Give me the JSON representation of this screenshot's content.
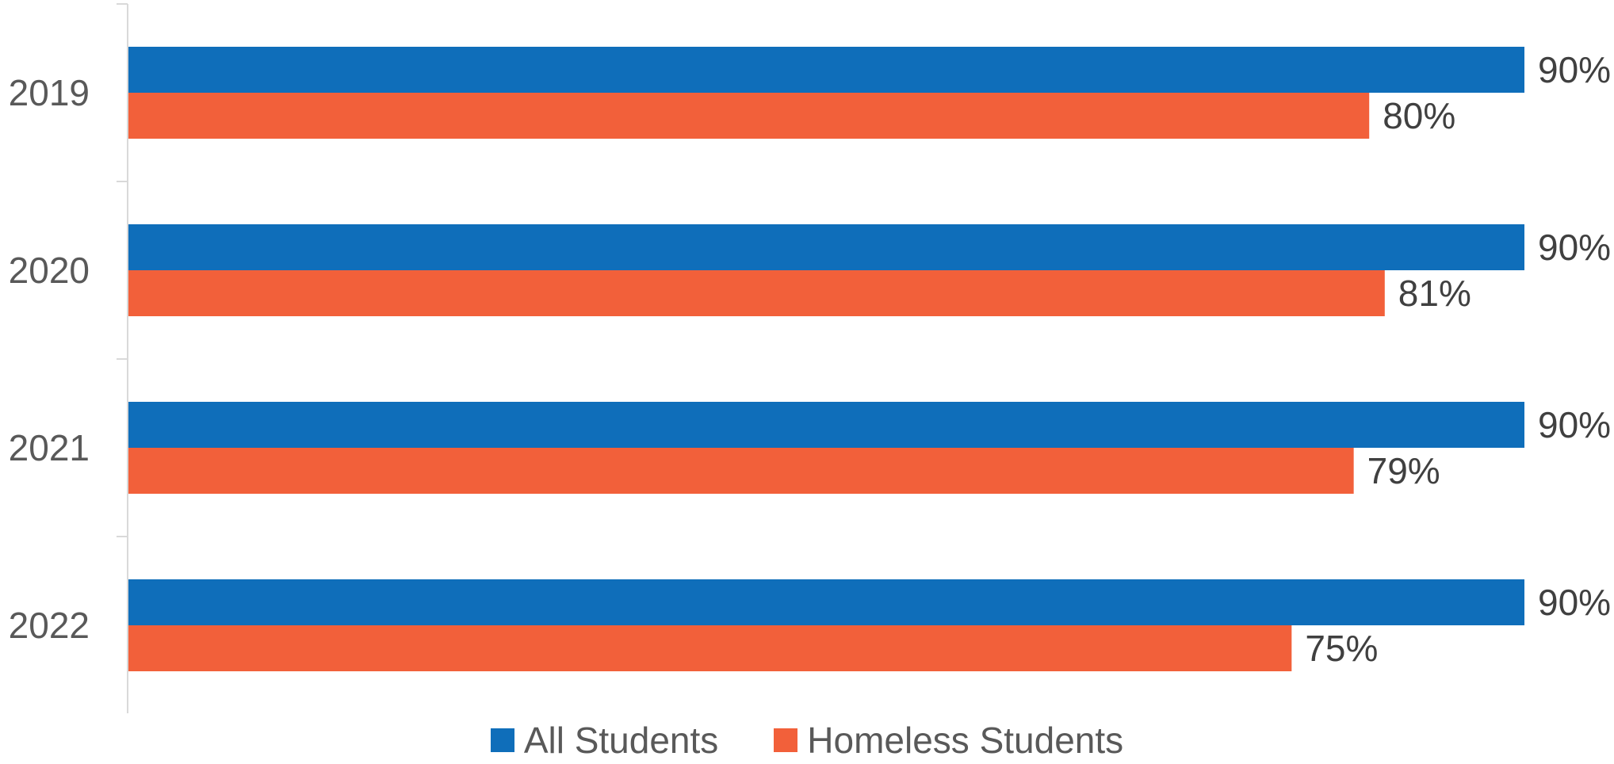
{
  "chart_data": {
    "type": "bar",
    "orientation": "horizontal",
    "categories": [
      "2019",
      "2020",
      "2021",
      "2022"
    ],
    "series": [
      {
        "name": "All Students",
        "color": "#0F6EBA",
        "values": [
          90,
          90,
          90,
          90
        ],
        "labels": [
          "90%",
          "90%",
          "90%",
          "90%"
        ]
      },
      {
        "name": "Homeless Students",
        "color": "#F2603A",
        "values": [
          80,
          81,
          79,
          75
        ],
        "labels": [
          "80%",
          "81%",
          "79%",
          "75%"
        ]
      }
    ],
    "xlim": [
      0,
      90
    ],
    "value_unit": "%",
    "grid": false,
    "legend_position": "bottom"
  }
}
